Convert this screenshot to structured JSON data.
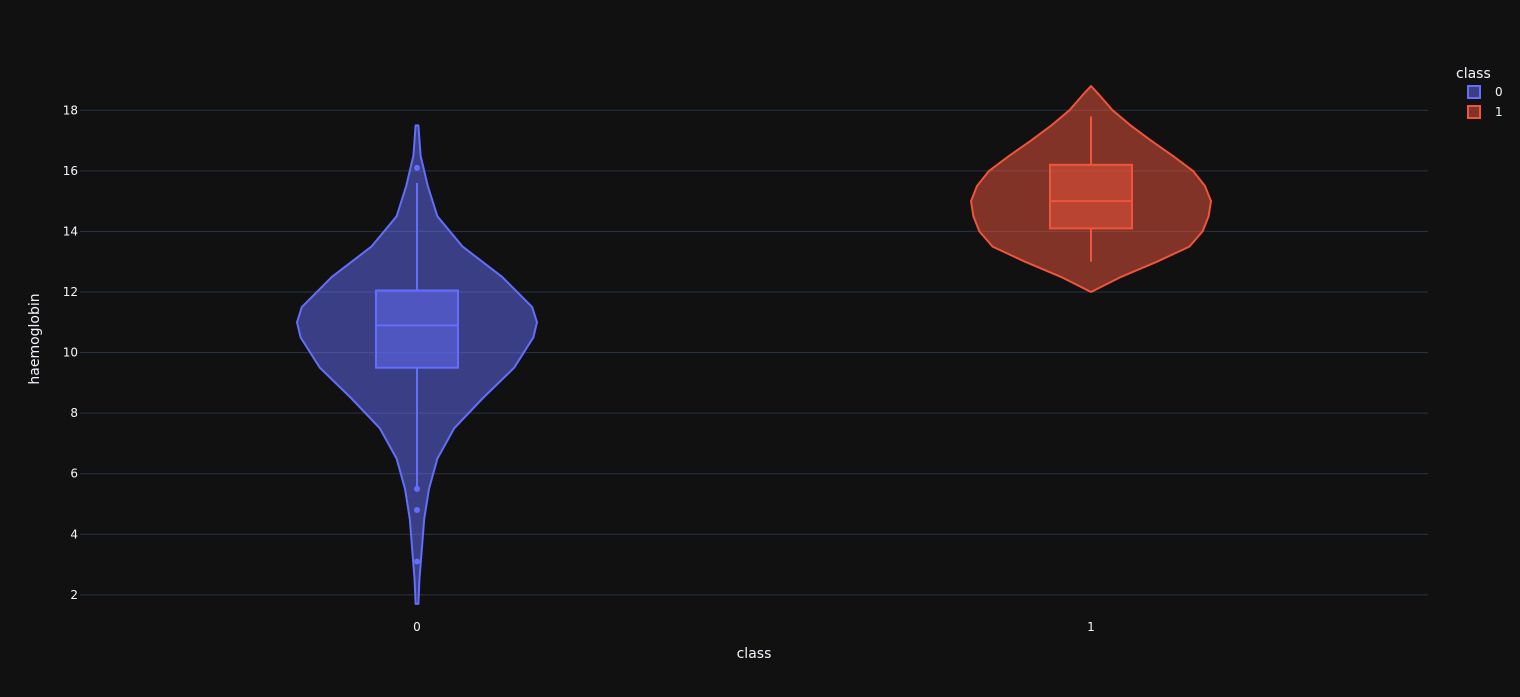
{
  "chart_data": {
    "type": "violin",
    "title": "",
    "xlabel": "class",
    "ylabel": "haemoglobin",
    "categories": [
      "0",
      "1"
    ],
    "y_ticks": [
      "2",
      "4",
      "6",
      "8",
      "10",
      "12",
      "14",
      "16",
      "18"
    ],
    "ylim": [
      1.5,
      19
    ],
    "grid": true,
    "legend": {
      "title": "class",
      "placement": "top-right"
    },
    "series": [
      {
        "name": "0",
        "color": "#636efa",
        "box": {
          "q1": 9.5,
          "median": 10.9,
          "q3": 12.05,
          "whisker_low": 5.5,
          "whisker_high": 15.6
        },
        "outliers": [
          16.1,
          5.5,
          4.8,
          3.1
        ],
        "density": [
          [
            1.7,
            0.012
          ],
          [
            2.5,
            0.02
          ],
          [
            3.5,
            0.04
          ],
          [
            4.5,
            0.06
          ],
          [
            5.5,
            0.1
          ],
          [
            6.5,
            0.17
          ],
          [
            7.5,
            0.31
          ],
          [
            8.5,
            0.55
          ],
          [
            9.5,
            0.81
          ],
          [
            10.5,
            0.97
          ],
          [
            11.0,
            1.0
          ],
          [
            11.5,
            0.96
          ],
          [
            12.5,
            0.71
          ],
          [
            13.5,
            0.38
          ],
          [
            14.5,
            0.17
          ],
          [
            15.5,
            0.09
          ],
          [
            16.5,
            0.03
          ],
          [
            17.5,
            0.012
          ]
        ]
      },
      {
        "name": "1",
        "color": "#ef553b",
        "box": {
          "q1": 14.1,
          "median": 15.0,
          "q3": 16.2,
          "whisker_low": 13.0,
          "whisker_high": 17.8
        },
        "outliers": [],
        "density": [
          [
            12.0,
            0.0
          ],
          [
            12.5,
            0.25
          ],
          [
            13.0,
            0.55
          ],
          [
            13.5,
            0.82
          ],
          [
            14.0,
            0.93
          ],
          [
            14.5,
            0.98
          ],
          [
            15.0,
            1.0
          ],
          [
            15.5,
            0.95
          ],
          [
            16.0,
            0.85
          ],
          [
            16.5,
            0.68
          ],
          [
            17.0,
            0.5
          ],
          [
            17.5,
            0.33
          ],
          [
            18.0,
            0.18
          ],
          [
            18.5,
            0.07
          ],
          [
            18.8,
            0.0
          ]
        ]
      }
    ]
  }
}
